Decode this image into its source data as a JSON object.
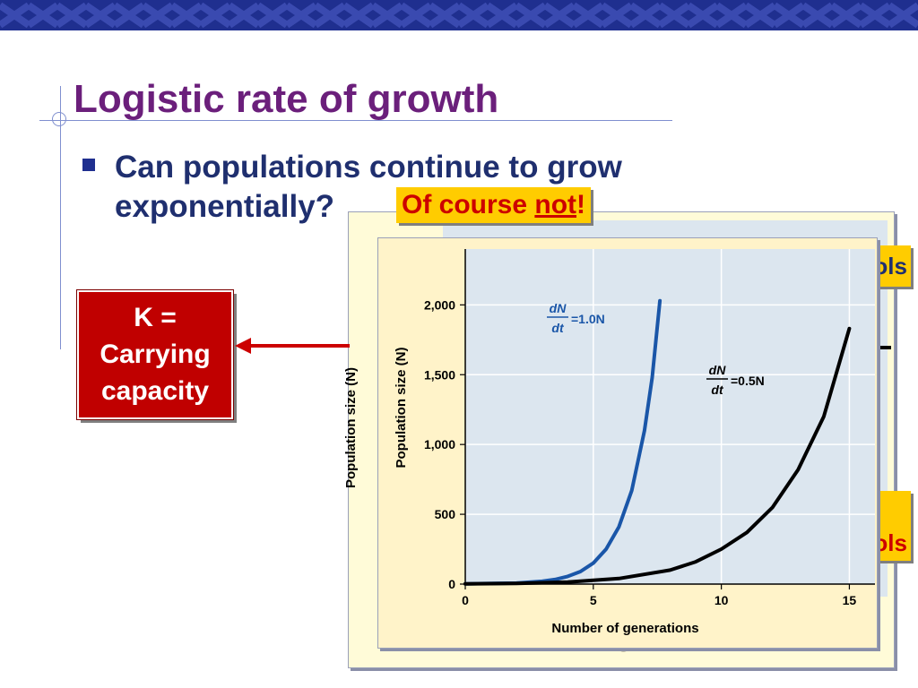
{
  "slide": {
    "title": "Logistic rate of growth",
    "bullet_line1": "Can populations continue to grow",
    "bullet_line2": "exponentially?",
    "callout_prefix": "Of course ",
    "callout_emph": "not",
    "callout_suffix": "!",
    "k_box": [
      "K =",
      "Carrying",
      "capacity"
    ],
    "side_text_top": "ols",
    "side_text_bottom": "ols",
    "back_ylabel": "Population size (N)",
    "back_xlabel": "Number of generations"
  },
  "colors": {
    "title": "#6b1f7b",
    "bullet_text": "#1f2f6f",
    "callout_bg": "#ffcc00",
    "callout_text": "#cc0000",
    "k_box": "#c00000",
    "arrow": "#cc0000",
    "plot_bg": "#dce6ef",
    "panel_bg": "#fff3c9",
    "series_fast": "#1a56a8",
    "series_slow": "#000000"
  },
  "chart_data": {
    "type": "line",
    "xlabel": "Number of generations",
    "ylabel": "Population size (N)",
    "xlim": [
      0,
      16
    ],
    "ylim": [
      0,
      2400
    ],
    "xticks": [
      0,
      5,
      10,
      15
    ],
    "yticks": [
      0,
      500,
      1000,
      1500,
      2000
    ],
    "ytick_labels": [
      "0",
      "500",
      "1,000",
      "1,500",
      "2,000"
    ],
    "grid": true,
    "series": [
      {
        "label_num": "dN",
        "label_den": "dt",
        "label_rhs": "=1.0N",
        "x": [
          0,
          1,
          2,
          3,
          3.5,
          4,
          4.5,
          5,
          5.5,
          6,
          6.5,
          7,
          7.3,
          7.6
        ],
        "y": [
          2,
          5,
          7,
          20,
          33,
          55,
          90,
          150,
          250,
          410,
          670,
          1100,
          1480,
          2030
        ]
      },
      {
        "label_num": "dN",
        "label_den": "dt",
        "label_rhs": "=0.5N",
        "x": [
          0,
          2,
          4,
          6,
          8,
          9,
          10,
          11,
          12,
          13,
          14,
          15
        ],
        "y": [
          2,
          5,
          15,
          40,
          100,
          160,
          250,
          370,
          550,
          820,
          1200,
          1830
        ]
      }
    ]
  }
}
